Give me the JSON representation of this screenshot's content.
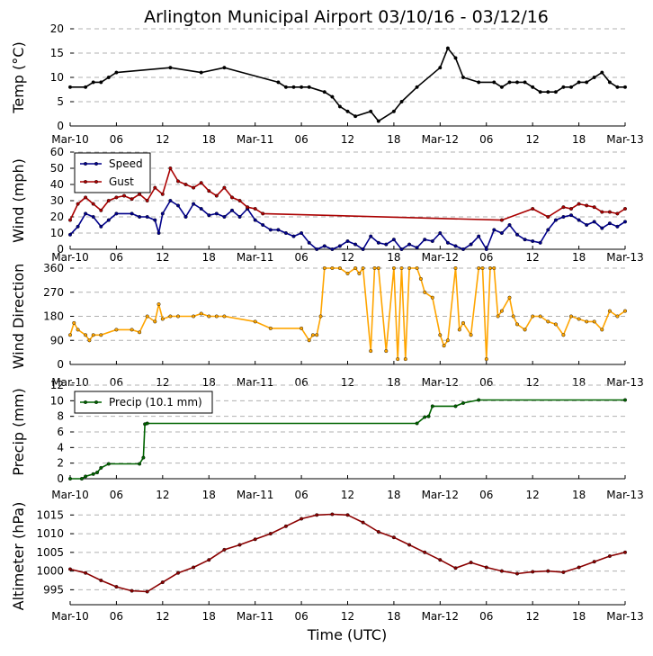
{
  "title": "Arlington Municipal Airport 03/10/16 - 03/12/16",
  "x_axis_label": "Time (UTC)",
  "x_ticks": [
    "Mar-10",
    "06",
    "12",
    "18",
    "Mar-11",
    "06",
    "12",
    "18",
    "Mar-12",
    "06",
    "12",
    "18",
    "Mar-13"
  ],
  "colors": {
    "temp": "#000000",
    "speed": "#00008b",
    "gust": "#aa0000",
    "wind_dir": "#ffa500",
    "precip": "#006400",
    "altimeter": "#8b0000",
    "grid": "#b0b0b0"
  },
  "chart_data": [
    {
      "type": "line",
      "id": "temp",
      "ylabel": "Temp (°C)",
      "ylim": [
        0,
        20
      ],
      "yticks": [
        "0",
        "5",
        "10",
        "15",
        "20"
      ],
      "x_hours": [
        0,
        2,
        3,
        4,
        5,
        6,
        13,
        17,
        20,
        27,
        28,
        29,
        30,
        31,
        33,
        34,
        35,
        36,
        37,
        39,
        40,
        42,
        43,
        45,
        48,
        49,
        50,
        51,
        53,
        55,
        56,
        57,
        58,
        59,
        60,
        61,
        62,
        63,
        64,
        65,
        66,
        67,
        68,
        69,
        70,
        71,
        72
      ],
      "series": [
        {
          "name": "Temp",
          "values": [
            8,
            8,
            9,
            9,
            10,
            11,
            12,
            11,
            12,
            9,
            8,
            8,
            8,
            8,
            7,
            6,
            4,
            3,
            2,
            3,
            1,
            3,
            5,
            8,
            12,
            16,
            14,
            10,
            9,
            9,
            8,
            9,
            9,
            9,
            8,
            7,
            7,
            7,
            8,
            8,
            9,
            9,
            10,
            11,
            9,
            8,
            8
          ]
        }
      ]
    },
    {
      "type": "line",
      "id": "wind",
      "ylabel": "Wind (mph)",
      "ylim": [
        0,
        60
      ],
      "yticks": [
        "0",
        "10",
        "20",
        "30",
        "40",
        "50",
        "60"
      ],
      "legend": {
        "position": "top-left",
        "entries": [
          "Speed",
          "Gust"
        ]
      },
      "series": [
        {
          "name": "Speed",
          "x_hours": [
            0,
            1,
            2,
            3,
            4,
            5,
            6,
            8,
            9,
            10,
            11,
            11.5,
            12,
            13,
            14,
            15,
            16,
            17,
            18,
            19,
            20,
            21,
            22,
            23,
            24,
            25,
            26,
            27,
            28,
            29,
            30,
            31,
            32,
            33,
            34,
            35,
            36,
            37,
            38,
            39,
            40,
            41,
            42,
            43,
            44,
            45,
            46,
            47,
            48,
            49,
            50,
            51,
            52,
            53,
            54,
            55,
            56,
            57,
            58,
            59,
            60,
            61,
            62,
            63,
            64,
            65,
            66,
            67,
            68,
            69,
            70,
            71,
            72
          ],
          "values": [
            9,
            14,
            22,
            20,
            14,
            18,
            22,
            22,
            20,
            20,
            18,
            10,
            22,
            30,
            27,
            20,
            28,
            25,
            21,
            22,
            20,
            24,
            20,
            25,
            18,
            15,
            12,
            12,
            10,
            8,
            10,
            4,
            0,
            2,
            0,
            2,
            5,
            3,
            0,
            8,
            4,
            3,
            6,
            0,
            3,
            1,
            6,
            5,
            10,
            4,
            2,
            0,
            3,
            8,
            0,
            12,
            10,
            15,
            9,
            6,
            5,
            4,
            12,
            18,
            20,
            21,
            18,
            15,
            17,
            13,
            16,
            14,
            17
          ]
        },
        {
          "name": "Gust",
          "x_hours": [
            0,
            1,
            2,
            3,
            4,
            5,
            6,
            7,
            8,
            9,
            10,
            11,
            12,
            13,
            14,
            15,
            16,
            17,
            18,
            19,
            20,
            21,
            22,
            23,
            24,
            25,
            56,
            60,
            62,
            64,
            65,
            66,
            67,
            68,
            69,
            70,
            71,
            72
          ],
          "values": [
            18,
            28,
            32,
            28,
            24,
            30,
            32,
            33,
            31,
            34,
            30,
            38,
            34,
            50,
            42,
            40,
            38,
            41,
            36,
            33,
            38,
            32,
            30,
            26,
            25,
            22,
            18,
            25,
            20,
            26,
            25,
            28,
            27,
            26,
            23,
            23,
            22,
            25
          ]
        }
      ]
    },
    {
      "type": "line",
      "id": "wind_dir",
      "ylabel": "Wind Direction",
      "ylim": [
        0,
        360
      ],
      "yticks": [
        "0",
        "90",
        "180",
        "270",
        "360"
      ],
      "x_hours": [
        0,
        0.5,
        1,
        2,
        2.5,
        3,
        4,
        6,
        8,
        9,
        10,
        11,
        11.5,
        12,
        13,
        14,
        16,
        17,
        18,
        19,
        20,
        24,
        26,
        30,
        31,
        31.5,
        32,
        32.5,
        33,
        34,
        35,
        36,
        37,
        37.5,
        38,
        39,
        39.5,
        40,
        41,
        42,
        42.5,
        43,
        43.5,
        44,
        45,
        45.5,
        46,
        47,
        48,
        48.5,
        49,
        50,
        50.5,
        51,
        52,
        53,
        53.5,
        54,
        54.5,
        55,
        55.5,
        56,
        57,
        57.5,
        58,
        59,
        60,
        61,
        62,
        63,
        64,
        65,
        66,
        67,
        68,
        69,
        70,
        71,
        72
      ],
      "series": [
        {
          "name": "Wind Direction",
          "values": [
            110,
            155,
            130,
            110,
            90,
            110,
            110,
            130,
            130,
            120,
            180,
            160,
            225,
            170,
            180,
            180,
            180,
            190,
            180,
            180,
            180,
            160,
            135,
            135,
            90,
            110,
            110,
            180,
            360,
            360,
            360,
            340,
            360,
            340,
            360,
            50,
            360,
            360,
            50,
            360,
            20,
            360,
            20,
            360,
            360,
            320,
            270,
            250,
            110,
            70,
            90,
            360,
            130,
            155,
            110,
            360,
            360,
            20,
            360,
            360,
            180,
            200,
            250,
            180,
            150,
            130,
            180,
            180,
            160,
            150,
            110,
            180,
            170,
            160,
            160,
            130,
            200,
            180,
            200
          ]
        }
      ]
    },
    {
      "type": "line",
      "id": "precip",
      "ylabel": "Precip (mm)",
      "ylim": [
        0,
        12
      ],
      "yticks": [
        "0",
        "2",
        "4",
        "6",
        "8",
        "10",
        "12"
      ],
      "legend": {
        "position": "top-left",
        "entries": [
          "Precip (10.1 mm)"
        ]
      },
      "x_hours": [
        0,
        1.5,
        2,
        3,
        3.5,
        4,
        5,
        9,
        9.5,
        9.7,
        10,
        45,
        46,
        46.5,
        47,
        50,
        51,
        53,
        72
      ],
      "series": [
        {
          "name": "Precip (10.1 mm)",
          "values": [
            0,
            0,
            0.3,
            0.6,
            0.8,
            1.4,
            1.9,
            1.9,
            2.7,
            7.0,
            7.1,
            7.1,
            7.9,
            8.0,
            9.3,
            9.3,
            9.7,
            10.1,
            10.1
          ]
        }
      ]
    },
    {
      "type": "line",
      "id": "altimeter",
      "ylabel": "Altimeter (hPa)",
      "ylim": [
        991,
        1017
      ],
      "yticks": [
        "995",
        "1000",
        "1005",
        "1010",
        "1015"
      ],
      "x_hours": [
        0,
        2,
        4,
        6,
        8,
        10,
        12,
        14,
        16,
        18,
        20,
        22,
        24,
        26,
        28,
        30,
        32,
        34,
        36,
        38,
        40,
        42,
        44,
        46,
        48,
        50,
        52,
        54,
        56,
        58,
        60,
        62,
        64,
        66,
        68,
        70,
        72
      ],
      "series": [
        {
          "name": "Altimeter",
          "values": [
            1000.5,
            999.5,
            997.5,
            995.8,
            994.7,
            994.5,
            997,
            999.5,
            1001,
            1003,
            1005.7,
            1007,
            1008.5,
            1010,
            1012,
            1014,
            1015,
            1015.2,
            1015,
            1013,
            1010.5,
            1009,
            1007,
            1005,
            1003,
            1000.8,
            1002.3,
            1001,
            1000,
            999.3,
            999.8,
            1000,
            999.7,
            1001,
            1002.5,
            1004,
            1005
          ]
        }
      ]
    }
  ]
}
